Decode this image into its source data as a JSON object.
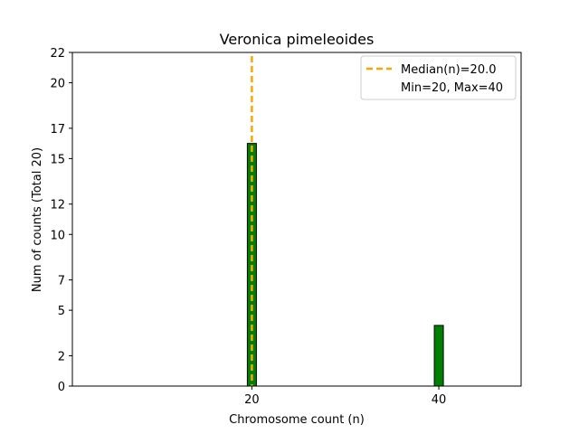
{
  "chart_data": {
    "type": "bar",
    "title": "Veronica pimeleoides",
    "xlabel": "Chromosome count (n)",
    "ylabel": "Num of counts        (Total 20)",
    "x": [
      20,
      40
    ],
    "values": [
      16,
      4
    ],
    "xticks": [
      20,
      40
    ],
    "yticks": [
      0,
      2,
      5,
      7,
      10,
      12,
      15,
      17,
      20,
      22
    ],
    "xlim": [
      0.8,
      48.8
    ],
    "ylim": [
      0,
      22
    ],
    "bar_color": "#008000",
    "bar_edge_color": "#000000",
    "median": 20.0,
    "median_color": "#FFA500",
    "legend": {
      "position": "top-right",
      "entries": [
        "Median(n)=20.0",
        "Min=20, Max=40"
      ]
    },
    "grid": false
  }
}
